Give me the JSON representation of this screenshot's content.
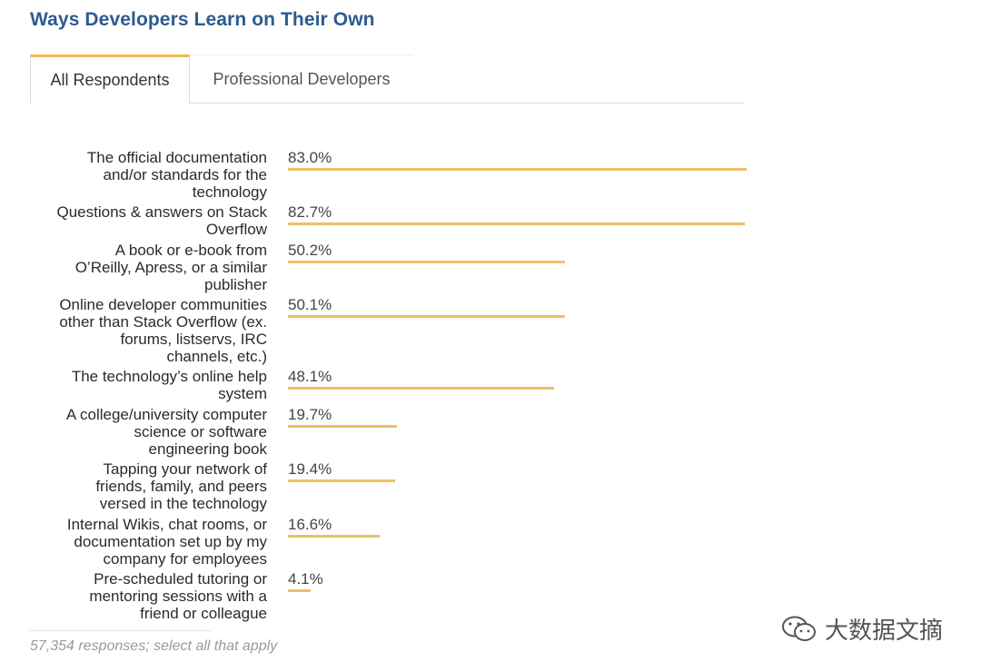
{
  "title": "Ways Developers Learn on Their Own",
  "tabs": [
    {
      "label": "All Respondents",
      "active": true
    },
    {
      "label": "Professional Developers",
      "active": false
    }
  ],
  "colors": {
    "title": "#2d5b8e",
    "bar": "#ecc165",
    "active_tab_accent": "#f0b84a"
  },
  "chart_data": {
    "type": "bar",
    "orientation": "horizontal",
    "title": "Ways Developers Learn on Their Own",
    "categories": [
      "The official documentation and/or standards for the technology",
      "Questions & answers on Stack Overflow",
      "A book or e-book from O’Reilly, Apress, or a similar publisher",
      "Online developer communities other than Stack Overflow (ex. forums, listservs, IRC channels, etc.)",
      "The technology’s online help system",
      "A college/university computer science or software engineering book",
      "Tapping your network of friends, family, and peers versed in the technology",
      "Internal Wikis, chat rooms, or documentation set up by my company for employees",
      "Pre-scheduled tutoring or mentoring sessions with a friend or colleague"
    ],
    "label_lines": [
      [
        "The official documentation",
        "and/or standards for the",
        "technology"
      ],
      [
        "Questions & answers on Stack",
        "Overflow"
      ],
      [
        "A book or e-book from",
        "O’Reilly, Apress, or a similar",
        "publisher"
      ],
      [
        "Online developer communities",
        "other than Stack Overflow (ex.",
        "forums, listservs, IRC",
        "channels, etc.)"
      ],
      [
        "The technology’s online help",
        "system"
      ],
      [
        "A college/university computer",
        "science or software",
        "engineering book"
      ],
      [
        "Tapping your network of",
        "friends, family, and peers",
        "versed in the technology"
      ],
      [
        "Internal Wikis, chat rooms, or",
        "documentation set up by my",
        "company for employees"
      ],
      [
        "Pre-scheduled tutoring or",
        "mentoring sessions with a",
        "friend or colleague"
      ]
    ],
    "values": [
      83.0,
      82.7,
      50.2,
      50.1,
      48.1,
      19.7,
      19.4,
      16.6,
      4.1
    ],
    "value_labels": [
      "83.0%",
      "82.7%",
      "50.2%",
      "50.1%",
      "48.1%",
      "19.7%",
      "19.4%",
      "16.6%",
      "4.1%"
    ],
    "xlim": [
      0,
      83
    ],
    "grid": false,
    "legend": "none"
  },
  "footer": "57,354 responses; select all that apply",
  "watermark": {
    "text": "大数据文摘",
    "icon": "wechat-icon"
  }
}
